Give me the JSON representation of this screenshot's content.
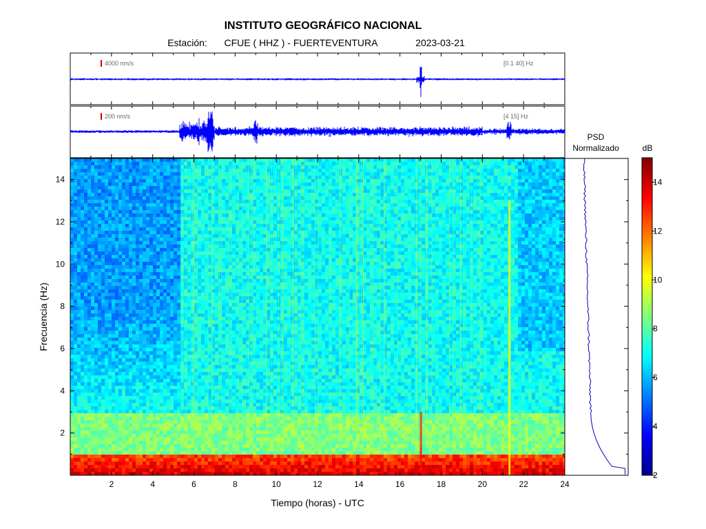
{
  "header": {
    "title": "INSTITUTO GEOGRÁFICO NACIONAL",
    "station_label": "Estación:",
    "station": "CFUE ( HHZ ) - FUERTEVENTURA",
    "date": "2023-03-21"
  },
  "trace_panels": [
    {
      "scale_label": "4000 nm/s",
      "filter_label": "[0.1 40]  Hz"
    },
    {
      "scale_label": "200 nm/s",
      "filter_label": "[4 15]  Hz"
    }
  ],
  "psd": {
    "title": "PSD",
    "subtitle": "Normalizado"
  },
  "colorbar": {
    "unit": "dB",
    "ticks": [
      2,
      4,
      6,
      8,
      10,
      12,
      14
    ],
    "range": [
      2,
      15
    ]
  },
  "chart_data": {
    "type": "heatmap",
    "xlabel": "Tiempo (horas) - UTC",
    "ylabel": "Frecuencia  (Hz)",
    "xlim": [
      0,
      24
    ],
    "ylim": [
      0,
      15
    ],
    "xticks": [
      2,
      4,
      6,
      8,
      10,
      12,
      14,
      16,
      18,
      20,
      22,
      24
    ],
    "yticks": [
      2,
      4,
      6,
      8,
      10,
      12,
      14
    ],
    "quiet_period_end_hour": 5.3,
    "events": [
      {
        "time_h": 17.0,
        "note": "strong transient, visible in broadband trace"
      },
      {
        "time_h": 21.3,
        "note": "transient in 4-15 Hz band"
      }
    ],
    "band_energy_db": [
      {
        "freq_range": [
          0,
          1
        ],
        "level_db": 12.5
      },
      {
        "freq_range": [
          1,
          3
        ],
        "level_db": 8.5
      },
      {
        "freq_range": [
          3,
          15
        ],
        "level_db": 7.0
      }
    ]
  }
}
